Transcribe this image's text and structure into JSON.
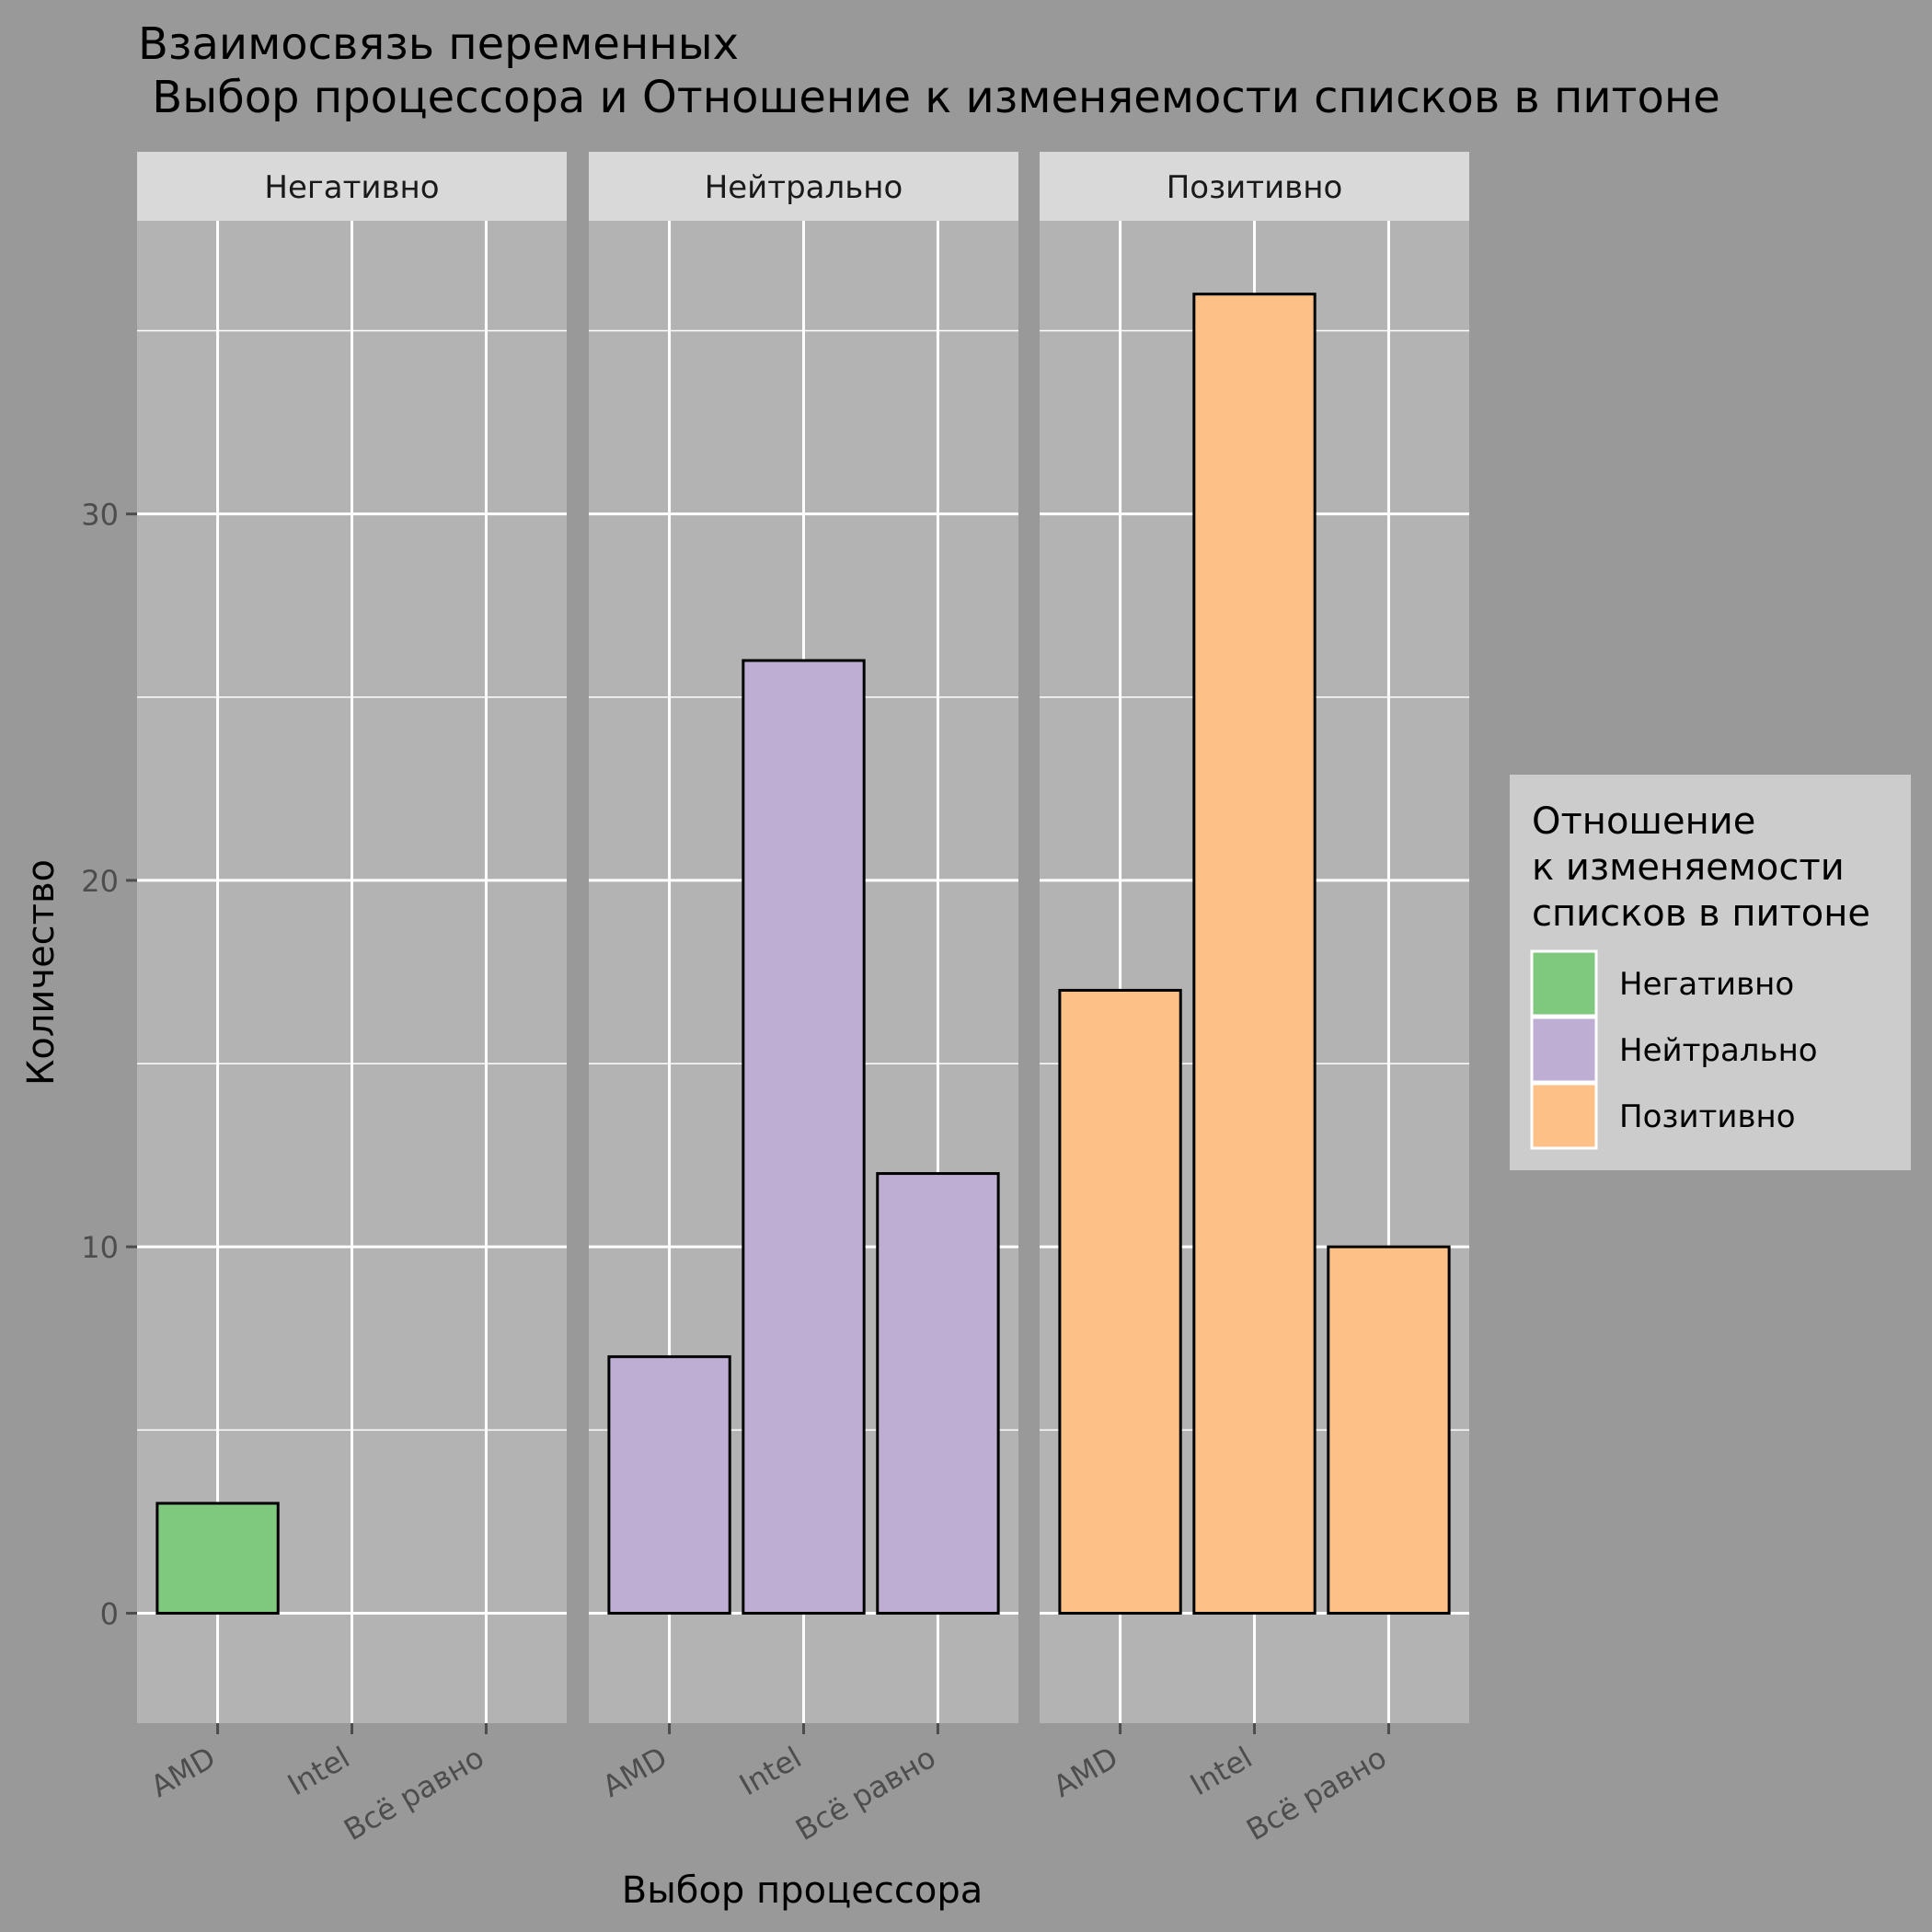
{
  "chart_data": {
    "type": "bar",
    "title_line1": "Взаимосвязь переменных",
    "title_line2": " Выбор процессора и Отношение к изменяемости списков в питоне",
    "xlabel": "Выбор процессора",
    "ylabel": "Количество",
    "categories": [
      "AMD",
      "Intel",
      "Всё равно"
    ],
    "ylim": [
      -3,
      38
    ],
    "yticks": [
      0,
      10,
      20,
      30
    ],
    "grid": true,
    "legend": {
      "title_lines": [
        "Отношение",
        "к изменяемости",
        "списков в питоне"
      ],
      "placement": "right"
    },
    "panels": [
      {
        "name": "Негативно",
        "color": "#7fc97f",
        "values": [
          3,
          0,
          0
        ]
      },
      {
        "name": "Нейтрально",
        "color": "#beaed4",
        "values": [
          7,
          26,
          12
        ]
      },
      {
        "name": "Позитивно",
        "color": "#fdc086",
        "values": [
          17,
          36,
          10
        ]
      }
    ]
  }
}
